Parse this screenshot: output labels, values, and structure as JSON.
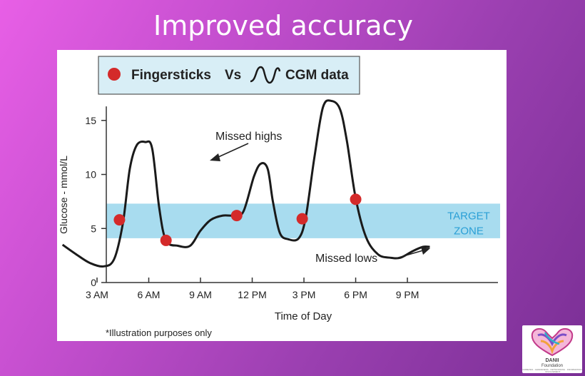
{
  "slide": {
    "title": "Improved accuracy"
  },
  "logo": {
    "name": "DANII",
    "subtitle": "Foundation",
    "tagline": "DIABETES · AWARENESS · NETWORKING · INFORMATION · INVOLVEMENT"
  },
  "chart_data": {
    "type": "line",
    "legend": {
      "marker_label": "Fingersticks",
      "separator": "Vs",
      "line_label": "CGM data",
      "placement": "top-left"
    },
    "xlabel": "Time of Day",
    "ylabel": "Glucose - mmol/L",
    "x_unit": "hour of day",
    "xlim": [
      1,
      22.3
    ],
    "ylim": [
      0,
      16.5
    ],
    "x_ticks": [
      {
        "value": 3,
        "label": "3 AM"
      },
      {
        "value": 6,
        "label": "6 AM"
      },
      {
        "value": 9,
        "label": "9 AM"
      },
      {
        "value": 12,
        "label": "12 PM"
      },
      {
        "value": 15,
        "label": "3 PM"
      },
      {
        "value": 18,
        "label": "6 PM"
      },
      {
        "value": 21,
        "label": "9 PM"
      }
    ],
    "y_ticks": [
      0,
      5,
      10,
      15
    ],
    "target_zone": {
      "low": 4.1,
      "high": 7.3,
      "label_line1": "TARGET",
      "label_line2": "ZONE",
      "color": "#a8dcef",
      "text_color": "#2a9fd6"
    },
    "series": [
      {
        "name": "CGM data",
        "style": "line",
        "color": "#1a1a1a",
        "points": [
          [
            1.0,
            3.5
          ],
          [
            1.8,
            2.6
          ],
          [
            2.6,
            1.8
          ],
          [
            3.4,
            1.5
          ],
          [
            4.0,
            2.2
          ],
          [
            4.5,
            5.5
          ],
          [
            4.9,
            10.5
          ],
          [
            5.3,
            12.7
          ],
          [
            5.8,
            13.0
          ],
          [
            6.2,
            12.4
          ],
          [
            6.6,
            7.0
          ],
          [
            7.0,
            3.9
          ],
          [
            7.7,
            3.4
          ],
          [
            8.4,
            3.4
          ],
          [
            9.0,
            4.8
          ],
          [
            9.6,
            5.8
          ],
          [
            10.3,
            6.2
          ],
          [
            11.0,
            6.2
          ],
          [
            11.5,
            6.6
          ],
          [
            12.1,
            9.8
          ],
          [
            12.5,
            11.0
          ],
          [
            12.9,
            10.5
          ],
          [
            13.2,
            7.5
          ],
          [
            13.6,
            4.6
          ],
          [
            14.1,
            4.0
          ],
          [
            14.7,
            4.1
          ],
          [
            15.1,
            6.0
          ],
          [
            15.6,
            11.5
          ],
          [
            16.1,
            16.2
          ],
          [
            16.6,
            16.8
          ],
          [
            17.1,
            16.0
          ],
          [
            17.5,
            13.0
          ],
          [
            18.0,
            7.8
          ],
          [
            18.6,
            4.2
          ],
          [
            19.3,
            2.6
          ],
          [
            20.0,
            2.3
          ],
          [
            20.6,
            2.3
          ],
          [
            21.3,
            2.9
          ],
          [
            21.9,
            3.3
          ],
          [
            22.3,
            3.3
          ]
        ]
      },
      {
        "name": "Fingersticks",
        "style": "marker",
        "color": "#d42a2a",
        "points": [
          [
            4.3,
            5.8
          ],
          [
            7.0,
            3.9
          ],
          [
            11.1,
            6.2
          ],
          [
            14.9,
            5.9
          ],
          [
            18.0,
            7.7
          ]
        ]
      }
    ],
    "annotations": [
      {
        "text": "Missed highs"
      },
      {
        "text": "Missed lows"
      }
    ],
    "footnote": "*Illustration purposes only"
  }
}
